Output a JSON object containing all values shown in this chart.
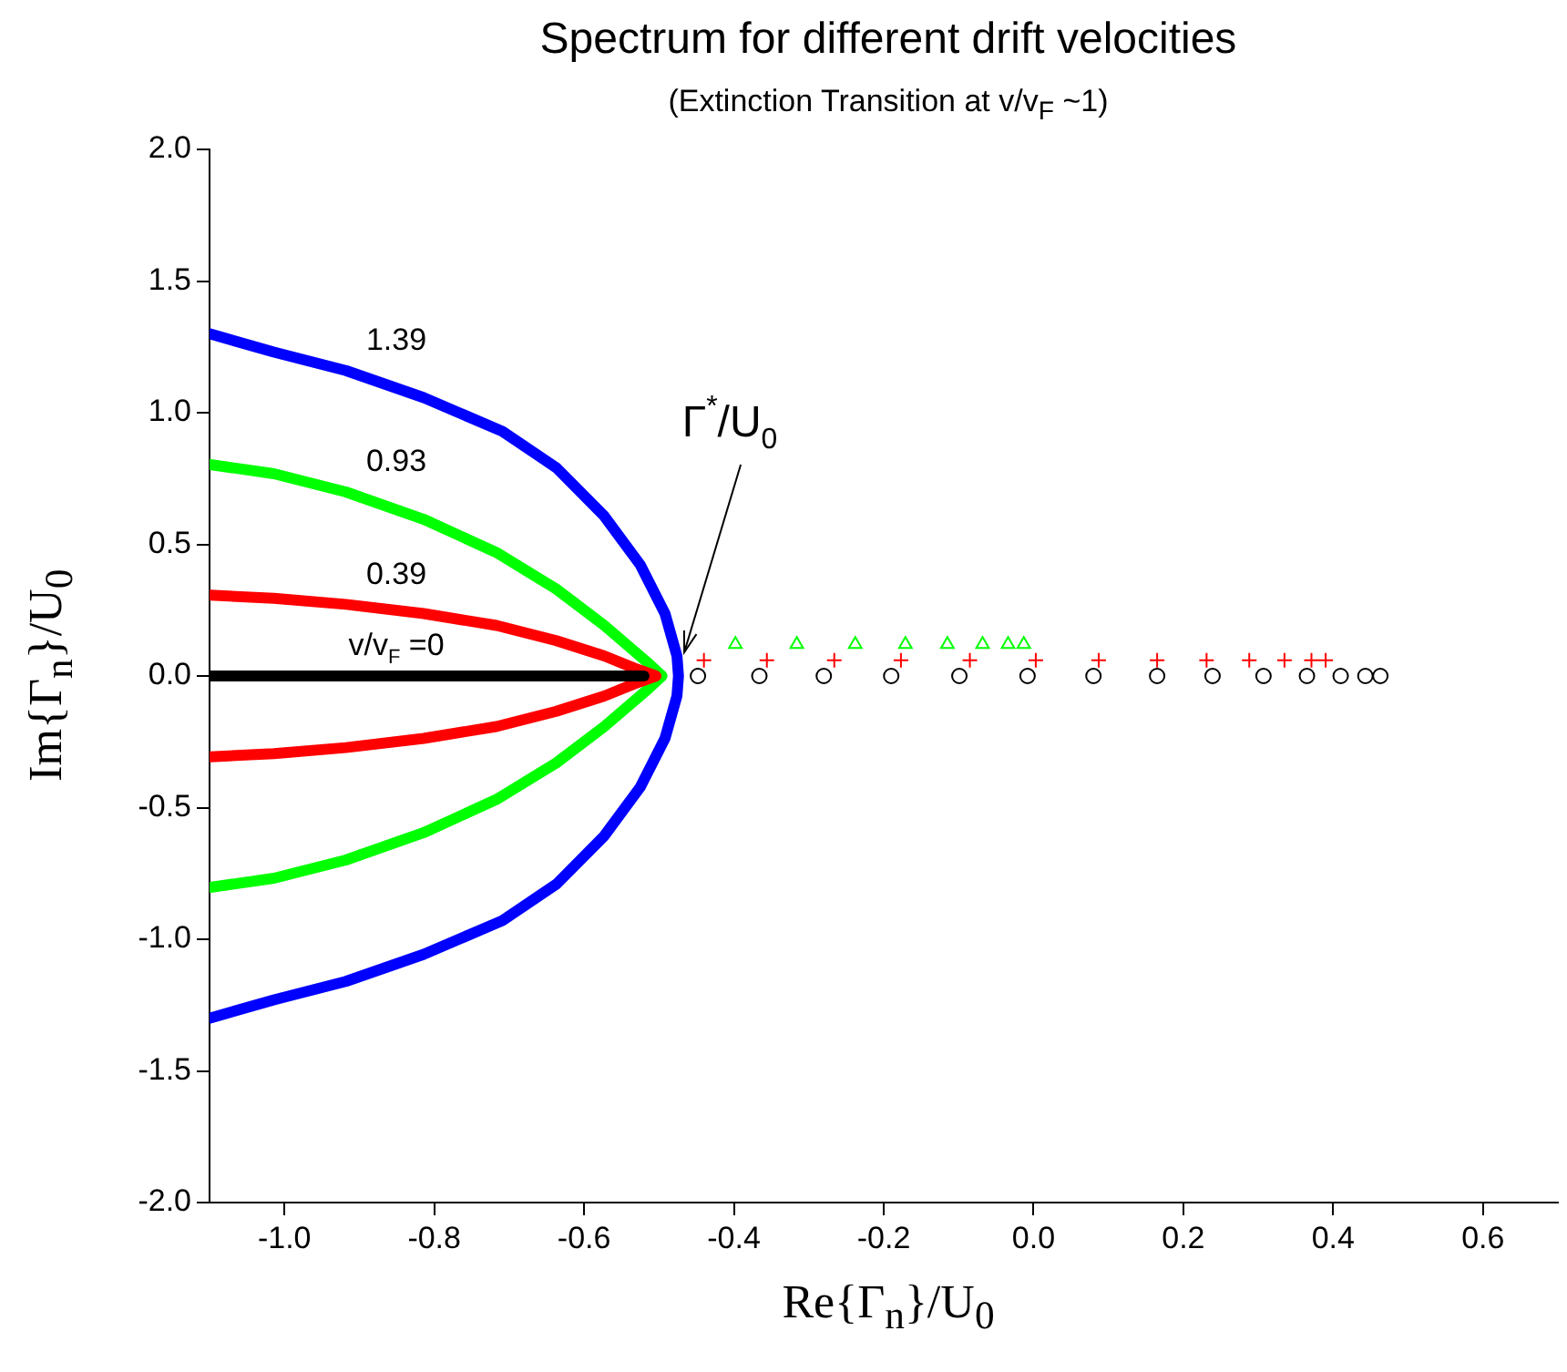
{
  "chart_data": {
    "type": "line",
    "title": "Spectrum for different drift velocities",
    "subtitle": "(Extinction Transition at v/v$_{F}$ ~1)",
    "xlabel": "Re{Γ$_{n}$}/U$_{0}$",
    "ylabel": "Im{Γ$_{n}$}/U$_{0}$",
    "xlim": [
      -1.1,
      0.7
    ],
    "ylim": [
      -2.0,
      2.0
    ],
    "xticks": [
      {
        "value": -1.0,
        "label": "-1.0"
      },
      {
        "value": -0.8,
        "label": "-0.8"
      },
      {
        "value": -0.6,
        "label": "-0.6"
      },
      {
        "value": -0.4,
        "label": "-0.4"
      },
      {
        "value": -0.2,
        "label": "-0.2"
      },
      {
        "value": 0,
        "label": "0.0"
      },
      {
        "value": 0.2,
        "label": "0.2"
      },
      {
        "value": 0.4,
        "label": "0.4"
      },
      {
        "value": 0.6,
        "label": "0.6"
      }
    ],
    "yticks": [
      {
        "value": -2.0,
        "label": "-2.0"
      },
      {
        "value": -1.5,
        "label": "-1.5"
      },
      {
        "value": -1.0,
        "label": "-1.0"
      },
      {
        "value": -0.5,
        "label": "-0.5"
      },
      {
        "value": 0,
        "label": "0.0"
      },
      {
        "value": 0.5,
        "label": "0.5"
      },
      {
        "value": 1.0,
        "label": "1.0"
      },
      {
        "value": 1.5,
        "label": "1.5"
      },
      {
        "value": 2.0,
        "label": "2.0"
      }
    ],
    "grid": false,
    "legend": false,
    "series": [
      {
        "color": "#000000",
        "x": [
          -1.1,
          -1.0,
          -0.9,
          -0.8,
          -0.7,
          -0.6,
          -0.52
        ],
        "values": [
          0,
          0,
          0,
          0,
          0,
          0,
          0
        ]
      },
      {
        "color": "#ff0000",
        "x": [
          -1.099,
          -1.014,
          -0.918,
          -0.814,
          -0.717,
          -0.637,
          -0.573,
          -0.533,
          -0.504,
          -0.533,
          -0.573,
          -0.637,
          -0.717,
          -0.814,
          -0.918,
          -1.014,
          -1.099
        ],
        "values": [
          0.307,
          0.295,
          0.272,
          0.237,
          0.192,
          0.134,
          0.076,
          0.03,
          0,
          -0.03,
          -0.076,
          -0.134,
          -0.192,
          -0.237,
          -0.272,
          -0.295,
          -0.307
        ]
      },
      {
        "color": "#00ff00",
        "x": [
          -1.099,
          -1.014,
          -0.918,
          -0.814,
          -0.717,
          -0.637,
          -0.573,
          -0.516,
          -0.496,
          -0.516,
          -0.573,
          -0.637,
          -0.717,
          -0.814,
          -0.918,
          -1.014,
          -1.099
        ],
        "values": [
          0.803,
          0.768,
          0.699,
          0.595,
          0.469,
          0.33,
          0.192,
          0.053,
          0,
          -0.053,
          -0.192,
          -0.33,
          -0.469,
          -0.595,
          -0.699,
          -0.768,
          -0.803
        ]
      },
      {
        "color": "#0000ff",
        "x": [
          -1.099,
          -1.014,
          -0.918,
          -0.814,
          -0.709,
          -0.637,
          -0.573,
          -0.525,
          -0.492,
          -0.476,
          -0.474,
          -0.476,
          -0.492,
          -0.525,
          -0.573,
          -0.637,
          -0.709,
          -0.814,
          -0.918,
          -1.014,
          -1.099
        ],
        "values": [
          1.299,
          1.23,
          1.16,
          1.057,
          0.929,
          0.791,
          0.607,
          0.422,
          0.237,
          0.076,
          0,
          -0.076,
          -0.237,
          -0.422,
          -0.607,
          -0.791,
          -0.929,
          -1.057,
          -1.16,
          -1.23,
          -1.299
        ]
      },
      {
        "type": "scatter",
        "marker": "circle",
        "color": "#000000",
        "x": [
          -0.448,
          -0.366,
          -0.28,
          -0.19,
          -0.099,
          -0.008,
          0.08,
          0.165,
          0.239,
          0.307,
          0.365,
          0.41,
          0.443,
          0.463
        ],
        "values": [
          0,
          0,
          0,
          0,
          0,
          0,
          0,
          0,
          0,
          0,
          0,
          0,
          0,
          0
        ]
      },
      {
        "type": "scatter",
        "marker": "cross",
        "color": "#ff0000",
        "x": [
          -0.44,
          -0.356,
          -0.266,
          -0.177,
          -0.085,
          0.003,
          0.087,
          0.165,
          0.231,
          0.288,
          0.335,
          0.371,
          0.39
        ],
        "values": [
          0.06,
          0.06,
          0.06,
          0.06,
          0.06,
          0.06,
          0.06,
          0.06,
          0.06,
          0.06,
          0.06,
          0.06,
          0.06
        ]
      },
      {
        "type": "scatter",
        "marker": "triangle",
        "color": "#00ff00",
        "x": [
          -0.398,
          -0.316,
          -0.238,
          -0.171,
          -0.115,
          -0.068,
          -0.034,
          -0.013
        ],
        "values": [
          0.12,
          0.12,
          0.12,
          0.12,
          0.12,
          0.12,
          0.12,
          0.12
        ]
      }
    ],
    "annotations": [
      "v/v$_{F}$ =0",
      "0.39",
      "0.93",
      "1.39",
      {
        "text": "Γ$^{*}$/U$_{0}$",
        "x": -0.476,
        "y": 0.076
      }
    ]
  }
}
